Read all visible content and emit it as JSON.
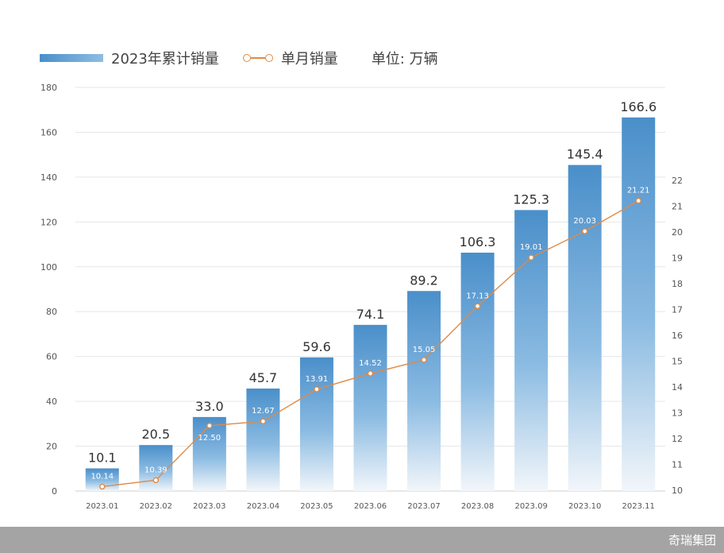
{
  "legend": {
    "cumulative_label": "2023年累计销量",
    "monthly_label": "单月销量",
    "unit_label": "单位: 万辆"
  },
  "footer": {
    "brand": "奇瑞集团"
  },
  "colors": {
    "bar_top": "#4a8fca",
    "bar_bottom": "#f2f6fa",
    "line": "#e08a45",
    "grid": "#e6e6e6"
  },
  "chart_data": {
    "type": "bar",
    "categories": [
      "2023.01",
      "2023.02",
      "2023.03",
      "2023.04",
      "2023.05",
      "2023.06",
      "2023.07",
      "2023.08",
      "2023.09",
      "2023.10",
      "2023.11"
    ],
    "series": [
      {
        "name": "2023年累计销量",
        "type": "bar",
        "axis": "left",
        "values": [
          10.1,
          20.5,
          33.0,
          45.7,
          59.6,
          74.1,
          89.2,
          106.3,
          125.3,
          145.4,
          166.6
        ],
        "labels": [
          "10.1",
          "20.5",
          "33.0",
          "45.7",
          "59.6",
          "74.1",
          "89.2",
          "106.3",
          "125.3",
          "145.4",
          "166.6"
        ]
      },
      {
        "name": "单月销量",
        "type": "line",
        "axis": "right",
        "values": [
          10.14,
          10.39,
          12.5,
          12.67,
          13.91,
          14.52,
          15.05,
          17.13,
          19.01,
          20.03,
          21.21
        ],
        "labels": [
          "10.14",
          "10.39",
          "12.50",
          "12.67",
          "13.91",
          "14.52",
          "15.05",
          "17.13",
          "19.01",
          "20.03",
          "21.21"
        ]
      }
    ],
    "y_left": {
      "ylim": [
        0,
        180
      ],
      "ticks": [
        0,
        20,
        40,
        60,
        80,
        100,
        120,
        140,
        160,
        180
      ]
    },
    "y_right": {
      "ylim": [
        10,
        22
      ],
      "ticks": [
        10,
        11,
        12,
        13,
        14,
        15,
        16,
        17,
        18,
        19,
        20,
        21,
        22
      ]
    },
    "grid": true,
    "legend_position": "top-left"
  }
}
